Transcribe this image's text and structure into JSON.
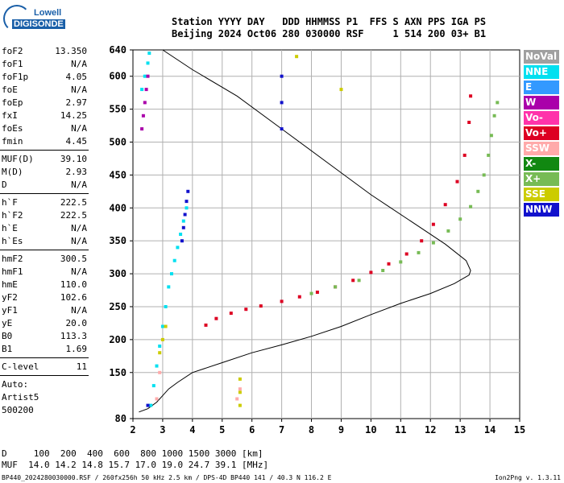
{
  "logo": {
    "line1": "Lowell",
    "line2": "DIGISONDE"
  },
  "header": {
    "line1": "Station YYYY DAY   DDD HHMMSS P1  FFS S AXN PPS IGA PS",
    "line2": "Beijing 2024 Oct06 280 030000 RSF     1 514 200 03+ B1"
  },
  "params_group1": [
    {
      "name": "foF2",
      "value": "13.350"
    },
    {
      "name": "foF1",
      "value": "N/A"
    },
    {
      "name": "foF1p",
      "value": "4.05"
    },
    {
      "name": "foE",
      "value": "N/A"
    },
    {
      "name": "foEp",
      "value": "2.97"
    },
    {
      "name": "fxI",
      "value": "14.25"
    },
    {
      "name": "foEs",
      "value": "N/A"
    },
    {
      "name": "fmin",
      "value": "4.45"
    }
  ],
  "params_group2": [
    {
      "name": "MUF(D)",
      "value": "39.10"
    },
    {
      "name": "M(D)",
      "value": "2.93"
    },
    {
      "name": "D",
      "value": "N/A"
    }
  ],
  "params_group3": [
    {
      "name": "h`F",
      "value": "222.5"
    },
    {
      "name": "h`F2",
      "value": "222.5"
    },
    {
      "name": "h`E",
      "value": "N/A"
    },
    {
      "name": "h`Es",
      "value": "N/A"
    }
  ],
  "params_group4": [
    {
      "name": "hmF2",
      "value": "300.5"
    },
    {
      "name": "hmF1",
      "value": "N/A"
    },
    {
      "name": "hmE",
      "value": "110.0"
    },
    {
      "name": "yF2",
      "value": "102.6"
    },
    {
      "name": "yF1",
      "value": "N/A"
    },
    {
      "name": "yE",
      "value": "20.0"
    },
    {
      "name": "B0",
      "value": "113.3"
    },
    {
      "name": "B1",
      "value": "1.69"
    }
  ],
  "clevel": {
    "name": "C-level",
    "value": "11"
  },
  "auto": {
    "line1": "Auto:",
    "line2": "Artist5",
    "line3": "500200"
  },
  "legend": [
    {
      "label": "NoVal",
      "color": "#a0a0a0"
    },
    {
      "label": "NNE",
      "color": "#00e0f0"
    },
    {
      "label": "E",
      "color": "#3399ff"
    },
    {
      "label": "W",
      "color": "#aa00aa"
    },
    {
      "label": "Vo-",
      "color": "#ff33aa"
    },
    {
      "label": "Vo+",
      "color": "#dd0022"
    },
    {
      "label": "SSW",
      "color": "#ffaaaa"
    },
    {
      "label": "X-",
      "color": "#118811"
    },
    {
      "label": "X+",
      "color": "#77bb55"
    },
    {
      "label": "SSE",
      "color": "#cccc00"
    },
    {
      "label": "NNW",
      "color": "#1111cc"
    }
  ],
  "bottom": {
    "line1": "D     100  200  400  600  800 1000 1500 3000 [km]",
    "line2": "MUF  14.0 14.2 14.8 15.7 17.0 19.0 24.7 39.1 [MHz]"
  },
  "footer": "BP440_2024280030000.RSF / 260fx256h 50 kHz 2.5 km / DPS-4D BP440 141 / 40.3 N 116.2 E",
  "version": "Ion2Png v. 1.3.11",
  "chart_data": {
    "type": "scatter",
    "x_ticks": [
      2,
      3,
      4,
      5,
      6,
      7,
      8,
      9,
      10,
      11,
      12,
      13,
      14,
      15
    ],
    "y_ticks": [
      80,
      150,
      200,
      250,
      300,
      350,
      400,
      450,
      500,
      550,
      600,
      640
    ],
    "xlim": [
      2,
      15
    ],
    "ylim": [
      80,
      640
    ],
    "grid": true,
    "series": [
      {
        "name": "Vo+",
        "color": "#dd0022",
        "x": [
          4.45,
          4.8,
          5.3,
          5.8,
          6.3,
          7.0,
          7.6,
          8.2,
          8.8,
          9.4,
          10.0,
          10.6,
          11.2,
          11.7,
          12.1,
          12.5,
          12.9,
          13.15,
          13.3,
          13.35
        ],
        "y": [
          222,
          232,
          240,
          246,
          251,
          258,
          265,
          272,
          280,
          290,
          302,
          315,
          330,
          350,
          375,
          405,
          440,
          480,
          530,
          570
        ]
      },
      {
        "name": "X+",
        "color": "#77bb55",
        "x": [
          8.0,
          8.8,
          9.6,
          10.4,
          11.0,
          11.6,
          12.1,
          12.6,
          13.0,
          13.35,
          13.6,
          13.8,
          13.95,
          14.05,
          14.15,
          14.25
        ],
        "y": [
          270,
          280,
          290,
          305,
          318,
          332,
          347,
          365,
          383,
          402,
          425,
          450,
          480,
          510,
          540,
          560
        ]
      },
      {
        "name": "NNE",
        "color": "#00e0f0",
        "x": [
          2.6,
          2.7,
          2.8,
          2.9,
          3.0,
          3.1,
          3.2,
          3.3,
          3.4,
          3.5,
          3.6,
          3.7,
          3.8,
          2.3,
          2.4,
          2.5,
          2.55
        ],
        "y": [
          100,
          130,
          160,
          190,
          220,
          250,
          280,
          300,
          320,
          340,
          360,
          380,
          400,
          580,
          600,
          620,
          635
        ]
      },
      {
        "name": "NNW",
        "color": "#1111cc",
        "x": [
          3.65,
          3.7,
          3.75,
          3.8,
          3.85,
          7.0,
          7.0,
          7.0,
          2.5
        ],
        "y": [
          350,
          370,
          390,
          410,
          425,
          520,
          560,
          600,
          100
        ]
      },
      {
        "name": "W",
        "color": "#aa00aa",
        "x": [
          2.3,
          2.35,
          2.4,
          2.45,
          2.5
        ],
        "y": [
          520,
          540,
          560,
          580,
          600
        ]
      },
      {
        "name": "SSE",
        "color": "#cccc00",
        "x": [
          2.9,
          3.0,
          3.1,
          5.6,
          5.6,
          5.6,
          7.5,
          9.0
        ],
        "y": [
          180,
          200,
          220,
          100,
          120,
          140,
          630,
          580
        ]
      },
      {
        "name": "SSW",
        "color": "#ffaaaa",
        "x": [
          2.8,
          2.9,
          5.5,
          5.6
        ],
        "y": [
          110,
          150,
          110,
          125
        ]
      }
    ],
    "profile": {
      "x": [
        2.2,
        2.5,
        2.8,
        3.0,
        3.2,
        3.5,
        4.0,
        5.0,
        6.0,
        7.0,
        8.0,
        9.0,
        10.0,
        11.0,
        12.0,
        12.8,
        13.3,
        13.35,
        13.2,
        12.5,
        11.5,
        10.0,
        8.5,
        7.0,
        5.5,
        4.0,
        3.0
      ],
      "y": [
        90,
        95,
        105,
        115,
        125,
        135,
        150,
        165,
        180,
        192,
        205,
        220,
        238,
        255,
        270,
        285,
        298,
        305,
        320,
        345,
        375,
        420,
        470,
        520,
        570,
        610,
        640
      ]
    }
  }
}
